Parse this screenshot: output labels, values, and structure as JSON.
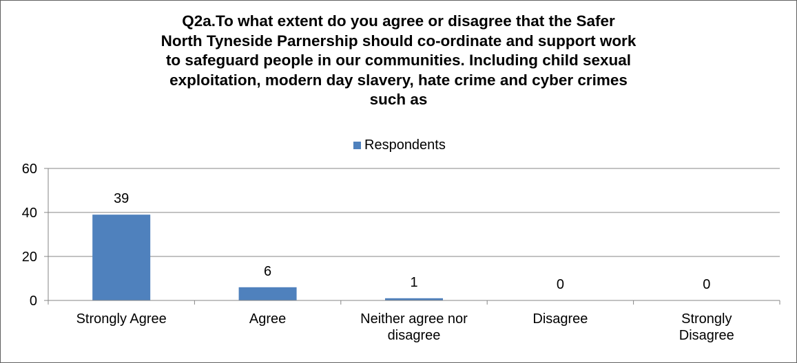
{
  "chart_data": {
    "type": "bar",
    "title": "Q2a.To what extent do you agree or disagree that the Safer\nNorth Tyneside Parnership should co-ordinate and support work\nto safeguard people in our communities.  Including child sexual\nexploitation, modern day slavery, hate crime and cyber crimes\nsuch as",
    "categories": [
      "Strongly Agree",
      "Agree",
      "Neither agree nor disagree",
      "Disagree",
      "Strongly Disagree"
    ],
    "category_lines": [
      [
        "Strongly Agree"
      ],
      [
        "Agree"
      ],
      [
        "Neither agree nor",
        "disagree"
      ],
      [
        "Disagree"
      ],
      [
        "Strongly",
        "Disagree"
      ]
    ],
    "series": [
      {
        "name": "Respondents",
        "values": [
          39,
          6,
          1,
          0,
          0
        ],
        "color": "#4f81bd"
      }
    ],
    "data_labels": [
      "39",
      "6",
      "1",
      "0",
      "0"
    ],
    "y_ticks": [
      "0",
      "20",
      "40",
      "60"
    ],
    "ylim": [
      0,
      60
    ],
    "grid": true,
    "legend_position": "top"
  }
}
